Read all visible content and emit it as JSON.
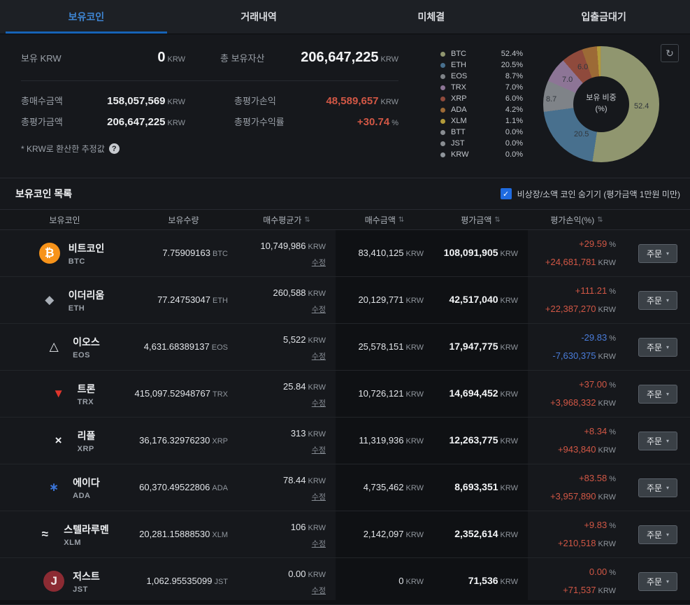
{
  "theme": {
    "accent": "#3f86d4",
    "accent_underline": "#1763b6",
    "checkbox": "#1f6be0",
    "up": "#d25745",
    "down": "#4a7ddb"
  },
  "tabs": [
    {
      "label": "보유코인"
    },
    {
      "label": "거래내역"
    },
    {
      "label": "미체결"
    },
    {
      "label": "입출금대기"
    }
  ],
  "summary": {
    "krw_label": "보유 KRW",
    "krw_value": "0",
    "total_asset_label": "총 보유자산",
    "total_asset_value": "206,647,225",
    "buy_total_label": "총매수금액",
    "buy_total_value": "158,057,569",
    "pl_label": "총평가손익",
    "pl_value": "48,589,657",
    "eval_total_label": "총평가금액",
    "eval_total_value": "206,647,225",
    "pl_rate_label": "총평가수익률",
    "pl_rate_value": "+30.74",
    "footnote": "* KRW로 환산한 추정값",
    "help": "?"
  },
  "units": {
    "krw": "KRW",
    "pct": "%"
  },
  "chart": {
    "center_line1": "보유 비중",
    "center_line2": "(%)",
    "refresh_icon": "↻",
    "slice_labels": [
      "52.4",
      "20.5",
      "8.7",
      "7.0",
      "6.0"
    ],
    "legend": [
      {
        "name": "BTC",
        "pct": "52.4%",
        "value": 52.4,
        "color": "#90966f"
      },
      {
        "name": "ETH",
        "pct": "20.5%",
        "value": 20.5,
        "color": "#48708e"
      },
      {
        "name": "EOS",
        "pct": "8.7%",
        "value": 8.7,
        "color": "#7f8388"
      },
      {
        "name": "TRX",
        "pct": "7.0%",
        "value": 7.0,
        "color": "#8d7596"
      },
      {
        "name": "XRP",
        "pct": "6.0%",
        "value": 6.0,
        "color": "#8f4a3c"
      },
      {
        "name": "ADA",
        "pct": "4.2%",
        "value": 4.2,
        "color": "#9c6a36"
      },
      {
        "name": "XLM",
        "pct": "1.1%",
        "value": 1.1,
        "color": "#b29b3a"
      },
      {
        "name": "BTT",
        "pct": "0.0%",
        "value": 0.0,
        "color": "#898d92"
      },
      {
        "name": "JST",
        "pct": "0.0%",
        "value": 0.0,
        "color": "#898d92"
      },
      {
        "name": "KRW",
        "pct": "0.0%",
        "value": 0.0,
        "color": "#8f959b"
      }
    ],
    "chart_data": {
      "type": "pie",
      "title": "보유 비중 (%)",
      "categories": [
        "BTC",
        "ETH",
        "EOS",
        "TRX",
        "XRP",
        "ADA",
        "XLM",
        "BTT",
        "JST",
        "KRW"
      ],
      "values": [
        52.4,
        20.5,
        8.7,
        7.0,
        6.0,
        4.2,
        1.1,
        0.0,
        0.0,
        0.0
      ]
    }
  },
  "holdings": {
    "title": "보유코인 목록",
    "filter_label": "비상장/소액 코인 숨기기 (평가금액 1만원 미만)",
    "checkbox_check": "✓",
    "sort_icon": "⇅",
    "columns": [
      "보유코인",
      "보유수량",
      "매수평균가",
      "매수금액",
      "평가금액",
      "평가손익(%)"
    ],
    "edit_label": "수정",
    "order_label": "주문",
    "order_chevron": "▾",
    "rows": [
      {
        "name": "비트코인",
        "symbol": "BTC",
        "icon": "₿",
        "icon_bg": "#f7931a",
        "icon_color": "#ffffff",
        "qty": "7.75909163",
        "qty_unit": "BTC",
        "avg": "10,749,986",
        "buy": "83,410,125",
        "eval": "108,091,905",
        "pl_pct": "+29.59",
        "pl_amt": "+24,681,781",
        "dir": "up"
      },
      {
        "name": "이더리움",
        "symbol": "ETH",
        "icon": "◆",
        "icon_bg": "transparent",
        "icon_color": "#a9afb7",
        "qty": "77.24753047",
        "qty_unit": "ETH",
        "avg": "260,588",
        "buy": "20,129,771",
        "eval": "42,517,040",
        "pl_pct": "+111.21",
        "pl_amt": "+22,387,270",
        "dir": "up"
      },
      {
        "name": "이오스",
        "symbol": "EOS",
        "icon": "△",
        "icon_bg": "transparent",
        "icon_color": "#e7eaee",
        "qty": "4,631.68389137",
        "qty_unit": "EOS",
        "avg": "5,522",
        "buy": "25,578,151",
        "eval": "17,947,775",
        "pl_pct": "-29.83",
        "pl_amt": "-7,630,375",
        "dir": "down"
      },
      {
        "name": "트론",
        "symbol": "TRX",
        "icon": "▼",
        "icon_bg": "transparent",
        "icon_color": "#e0352c",
        "qty": "415,097.52948767",
        "qty_unit": "TRX",
        "avg": "25.84",
        "buy": "10,726,121",
        "eval": "14,694,452",
        "pl_pct": "+37.00",
        "pl_amt": "+3,968,332",
        "dir": "up"
      },
      {
        "name": "리플",
        "symbol": "XRP",
        "icon": "×",
        "icon_bg": "transparent",
        "icon_color": "#eef0f3",
        "qty": "36,176.32976230",
        "qty_unit": "XRP",
        "avg": "313",
        "buy": "11,319,936",
        "eval": "12,263,775",
        "pl_pct": "+8.34",
        "pl_amt": "+943,840",
        "dir": "up"
      },
      {
        "name": "에이다",
        "symbol": "ADA",
        "icon": "∗",
        "icon_bg": "transparent",
        "icon_color": "#3a74d8",
        "qty": "60,370.49522806",
        "qty_unit": "ADA",
        "avg": "78.44",
        "buy": "4,735,462",
        "eval": "8,693,351",
        "pl_pct": "+83.58",
        "pl_amt": "+3,957,890",
        "dir": "up"
      },
      {
        "name": "스텔라루멘",
        "symbol": "XLM",
        "icon": "≈",
        "icon_bg": "transparent",
        "icon_color": "#e7eaee",
        "qty": "20,281.15888530",
        "qty_unit": "XLM",
        "avg": "106",
        "buy": "2,142,097",
        "eval": "2,352,614",
        "pl_pct": "+9.83",
        "pl_amt": "+210,518",
        "dir": "up"
      },
      {
        "name": "저스트",
        "symbol": "JST",
        "icon": "J",
        "icon_bg": "#8c2b33",
        "icon_color": "#f2e9e9",
        "qty": "1,062.95535099",
        "qty_unit": "JST",
        "avg": "0.00",
        "buy": "0",
        "eval": "71,536",
        "pl_pct": "0.00",
        "pl_amt": "+71,537",
        "dir": "up"
      }
    ]
  }
}
